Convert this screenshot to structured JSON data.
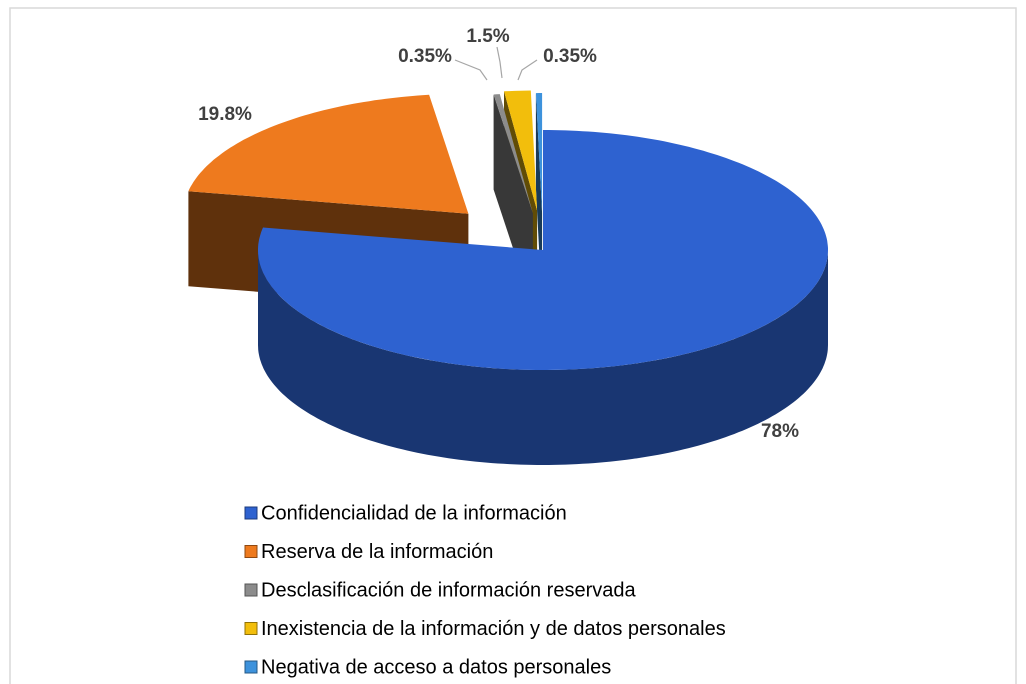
{
  "chart_data": {
    "type": "pie3d",
    "categories": [
      "Confidencialidad de la información",
      "Reserva de la información",
      "Desclasificación de información reservada",
      "Inexistencia de la información y de datos personales",
      "Negativa de acceso a datos personales"
    ],
    "values": [
      78,
      19.8,
      0.35,
      1.5,
      0.35
    ],
    "value_labels": [
      "78%",
      "19.8%",
      "0.35%",
      "1.5%",
      "0.35%"
    ],
    "colors": [
      "#2e62d0",
      "#ee7a1e",
      "#8c8c8c",
      "#f2be0c",
      "#3d92dc"
    ],
    "legend": "bottom"
  }
}
